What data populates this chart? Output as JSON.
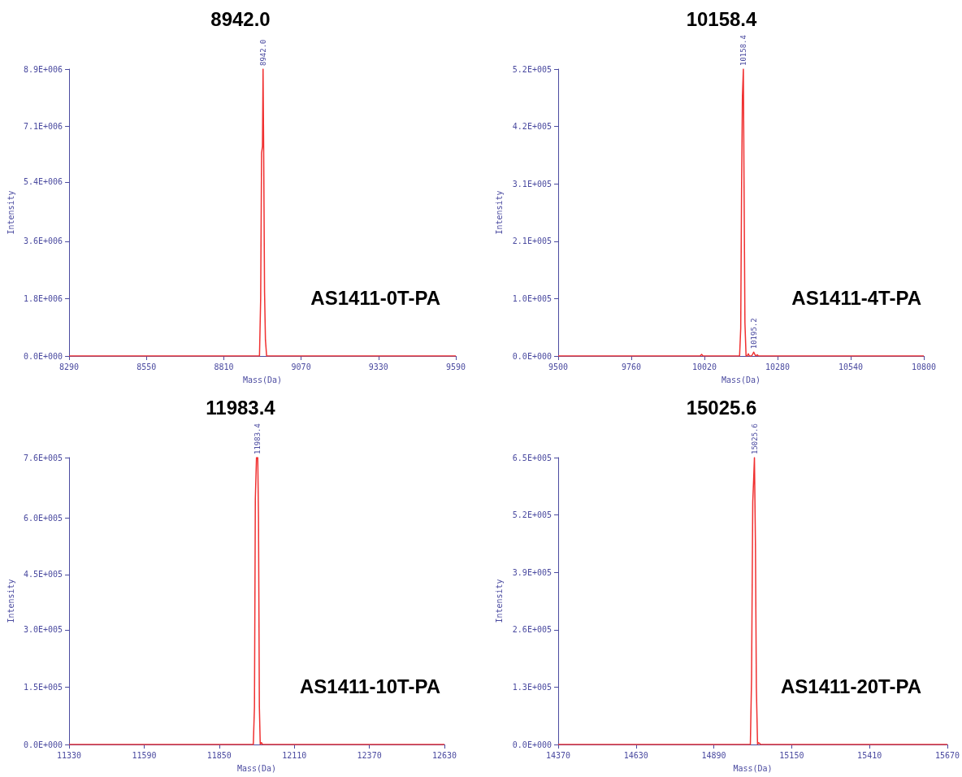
{
  "chart_data": [
    {
      "type": "line",
      "title": "8942.0",
      "xlabel": "Mass(Da)",
      "ylabel": "Intensity",
      "color": "#f03030",
      "x": [
        8290,
        8930,
        8934,
        8937,
        8940,
        8942,
        8944,
        8947,
        8950,
        8954,
        9590
      ],
      "values": [
        0,
        0,
        1800000,
        6300000,
        6500000,
        8900000,
        6500000,
        2000000,
        500000,
        0,
        0
      ],
      "xlim": [
        8290,
        9590
      ],
      "xticks": [
        8290,
        8550,
        8810,
        9070,
        9330,
        9590
      ],
      "ylim": [
        0,
        8900000
      ],
      "yticks": [
        {
          "value": 0,
          "label": "0.0E+000"
        },
        {
          "value": 1780000,
          "label": "1.8E+006"
        },
        {
          "value": 3560000,
          "label": "3.6E+006"
        },
        {
          "value": 5400000,
          "label": "5.4E+006"
        },
        {
          "value": 7120000,
          "label": "7.1E+006"
        },
        {
          "value": 8900000,
          "label": "8.9E+006"
        }
      ],
      "annotations": [
        {
          "text": "8942.0",
          "x": 8942,
          "y": 8900000
        },
        "AS1411-0T-PA"
      ]
    },
    {
      "type": "line",
      "title": "10158.4",
      "xlabel": "Mass(Da)",
      "ylabel": "Intensity",
      "color": "#f03030",
      "x": [
        9500,
        10005,
        10010,
        10015,
        10145,
        10149,
        10152,
        10155,
        10158.4,
        10161,
        10164,
        10168,
        10172,
        10176,
        10180,
        10188,
        10195.2,
        10202,
        10208,
        10212,
        10800
      ],
      "values": [
        0,
        0,
        3000,
        0,
        0,
        50000,
        300000,
        470000,
        520000,
        300000,
        60000,
        0,
        0,
        4000,
        0,
        0,
        7000,
        0,
        2000,
        0,
        0
      ],
      "xlim": [
        9500,
        10800
      ],
      "xticks": [
        9500,
        9760,
        10020,
        10280,
        10540,
        10800
      ],
      "ylim": [
        0,
        520000
      ],
      "yticks": [
        {
          "value": 0,
          "label": "0.0E+000"
        },
        {
          "value": 104000,
          "label": "1.0E+005"
        },
        {
          "value": 208000,
          "label": "2.1E+005"
        },
        {
          "value": 312000,
          "label": "3.1E+005"
        },
        {
          "value": 416000,
          "label": "4.2E+005"
        },
        {
          "value": 520000,
          "label": "5.2E+005"
        }
      ],
      "annotations": [
        {
          "text": "10158.4",
          "x": 10158.4,
          "y": 520000
        },
        {
          "text": "10195.2",
          "x": 10195.2,
          "y": 7000
        },
        "AS1411-4T-PA"
      ]
    },
    {
      "type": "line",
      "title": "11983.4",
      "xlabel": "Mass(Da)",
      "ylabel": "Intensity",
      "color": "#f03030",
      "x": [
        11330,
        11968,
        11972,
        11975,
        11979,
        11983.4,
        11986,
        11989,
        11992,
        11996,
        12000,
        12630
      ],
      "values": [
        0,
        0,
        100000,
        650000,
        760000,
        760000,
        600000,
        100000,
        0,
        5000,
        0,
        0
      ],
      "xlim": [
        11330,
        12630
      ],
      "xticks": [
        11330,
        11590,
        11850,
        12110,
        12370,
        12630
      ],
      "ylim": [
        0,
        760000
      ],
      "yticks": [
        {
          "value": 0,
          "label": "0.0E+000"
        },
        {
          "value": 152000,
          "label": "1.5E+005"
        },
        {
          "value": 304000,
          "label": "3.0E+005"
        },
        {
          "value": 450000,
          "label": "4.5E+005"
        },
        {
          "value": 600000,
          "label": "6.0E+005"
        },
        {
          "value": 760000,
          "label": "7.6E+005"
        }
      ],
      "annotations": [
        {
          "text": "11983.4",
          "x": 11983.4,
          "y": 760000
        },
        "AS1411-10T-PA"
      ]
    },
    {
      "type": "line",
      "title": "15025.6",
      "xlabel": "Mass(Da)",
      "ylabel": "Intensity",
      "color": "#f03030",
      "x": [
        14370,
        15012,
        15016,
        15020,
        15023,
        15025.6,
        15029,
        15032,
        15036,
        15039,
        15042,
        15046,
        15670
      ],
      "values": [
        0,
        0,
        150000,
        550000,
        600000,
        650000,
        450000,
        130000,
        0,
        4000,
        3000,
        0,
        0
      ],
      "xlim": [
        14370,
        15670
      ],
      "xticks": [
        14370,
        14630,
        14890,
        15150,
        15410,
        15670
      ],
      "ylim": [
        0,
        650000
      ],
      "yticks": [
        {
          "value": 0,
          "label": "0.0E+000"
        },
        {
          "value": 130000,
          "label": "1.3E+005"
        },
        {
          "value": 260000,
          "label": "2.6E+005"
        },
        {
          "value": 390000,
          "label": "3.9E+005"
        },
        {
          "value": 520000,
          "label": "5.2E+005"
        },
        {
          "value": 650000,
          "label": "6.5E+005"
        }
      ],
      "annotations": [
        {
          "text": "15025.6",
          "x": 15025.6,
          "y": 650000
        },
        "AS1411-20T-PA"
      ]
    }
  ]
}
